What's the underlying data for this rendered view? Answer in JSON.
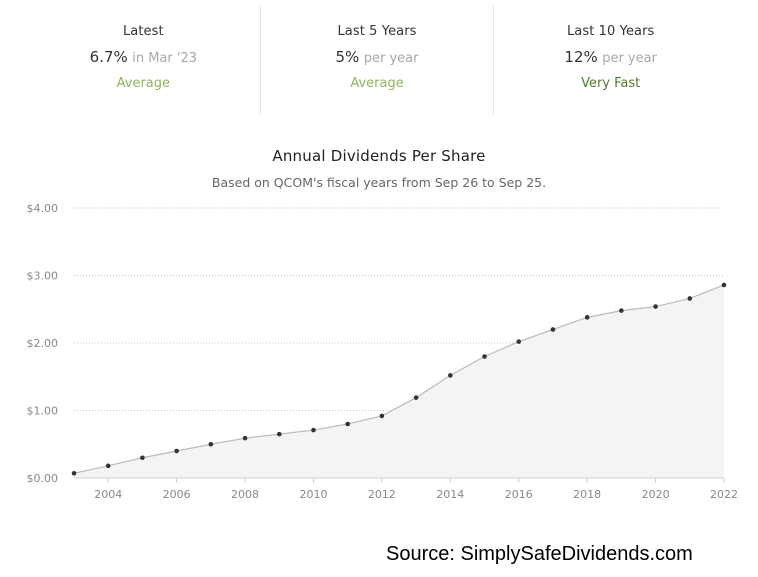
{
  "stats": [
    {
      "label": "Latest",
      "value": "6.7%",
      "suffix": "in Mar '23",
      "rating": "Average",
      "rating_color": "#8fb55a"
    },
    {
      "label": "Last 5 Years",
      "value": "5%",
      "suffix": "per year",
      "rating": "Average",
      "rating_color": "#8fb55a"
    },
    {
      "label": "Last 10 Years",
      "value": "12%",
      "suffix": "per year",
      "rating": "Very Fast",
      "rating_color": "#4f7d2b"
    }
  ],
  "source": "Source: SimplySafeDividends.com",
  "chart_data": {
    "type": "area",
    "title": "Annual Dividends Per Share",
    "subtitle": "Based on QCOM's fiscal years from Sep 26 to Sep 25.",
    "x": [
      2003,
      2004,
      2005,
      2006,
      2007,
      2008,
      2009,
      2010,
      2011,
      2012,
      2013,
      2014,
      2015,
      2016,
      2017,
      2018,
      2019,
      2020,
      2021,
      2022
    ],
    "values": [
      0.07,
      0.18,
      0.3,
      0.4,
      0.5,
      0.59,
      0.65,
      0.71,
      0.8,
      0.92,
      1.19,
      1.52,
      1.8,
      2.02,
      2.2,
      2.38,
      2.48,
      2.54,
      2.66,
      2.86
    ],
    "xlim": [
      2003,
      2022
    ],
    "ylim": [
      0,
      4
    ],
    "x_ticks": [
      "2004",
      "2006",
      "2008",
      "2010",
      "2012",
      "2014",
      "2016",
      "2018",
      "2020",
      "2022"
    ],
    "y_ticks": [
      "$0.00",
      "$1.00",
      "$2.00",
      "$3.00",
      "$4.00"
    ],
    "grid": true,
    "line_color": "#bbbbbb",
    "fill_color": "#f4f4f4",
    "marker_color": "#333333"
  }
}
